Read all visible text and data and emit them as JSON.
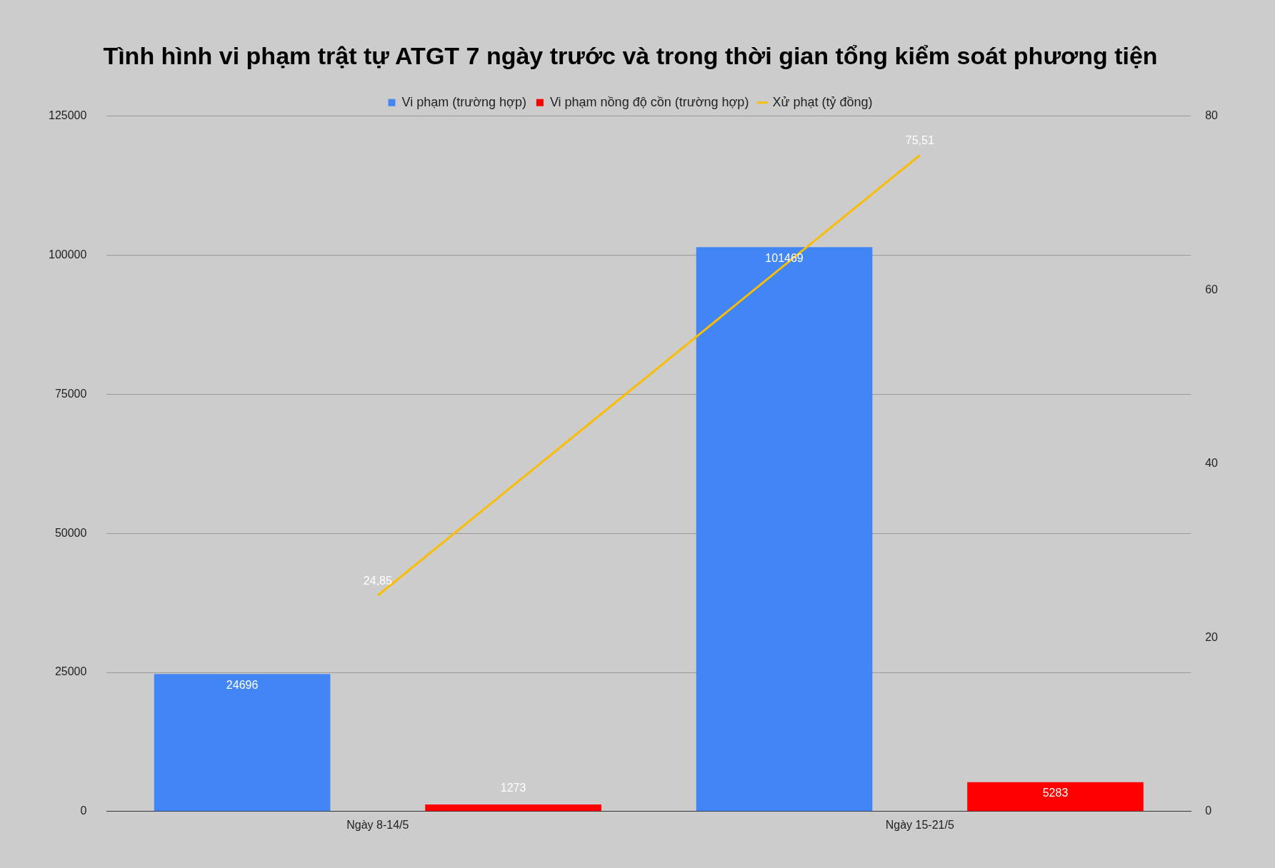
{
  "chart_data": {
    "type": "bar",
    "title": "Tình hình vi phạm trật tự ATGT 7 ngày trước và trong thời gian tổng kiểm soát phương tiện",
    "categories": [
      "Ngày 8-14/5",
      "Ngày 15-21/5"
    ],
    "series": [
      {
        "name": "Vi phạm (trường hợp)",
        "color": "#4285f4",
        "values": [
          24696,
          101469
        ],
        "value_labels": [
          "24696",
          "101469"
        ]
      },
      {
        "name": "Vi phạm nồng độ cồn (trường hợp)",
        "color": "#ff0000",
        "values": [
          1273,
          5283
        ],
        "value_labels": [
          "1273",
          "5283"
        ]
      },
      {
        "name": "Xử phạt (tỷ đồng)",
        "type": "line",
        "axis": "y2",
        "color": "#fbbc04",
        "values": [
          24.85,
          75.51
        ],
        "value_labels": [
          "24,85",
          "75,51"
        ]
      }
    ],
    "ylim": [
      0,
      125000
    ],
    "yticks": [
      0,
      25000,
      50000,
      75000,
      100000,
      125000
    ],
    "y2lim": [
      0,
      80
    ],
    "y2ticks": [
      0,
      20,
      40,
      60,
      80
    ],
    "grid": "y",
    "legend": "top",
    "marker": "none"
  }
}
